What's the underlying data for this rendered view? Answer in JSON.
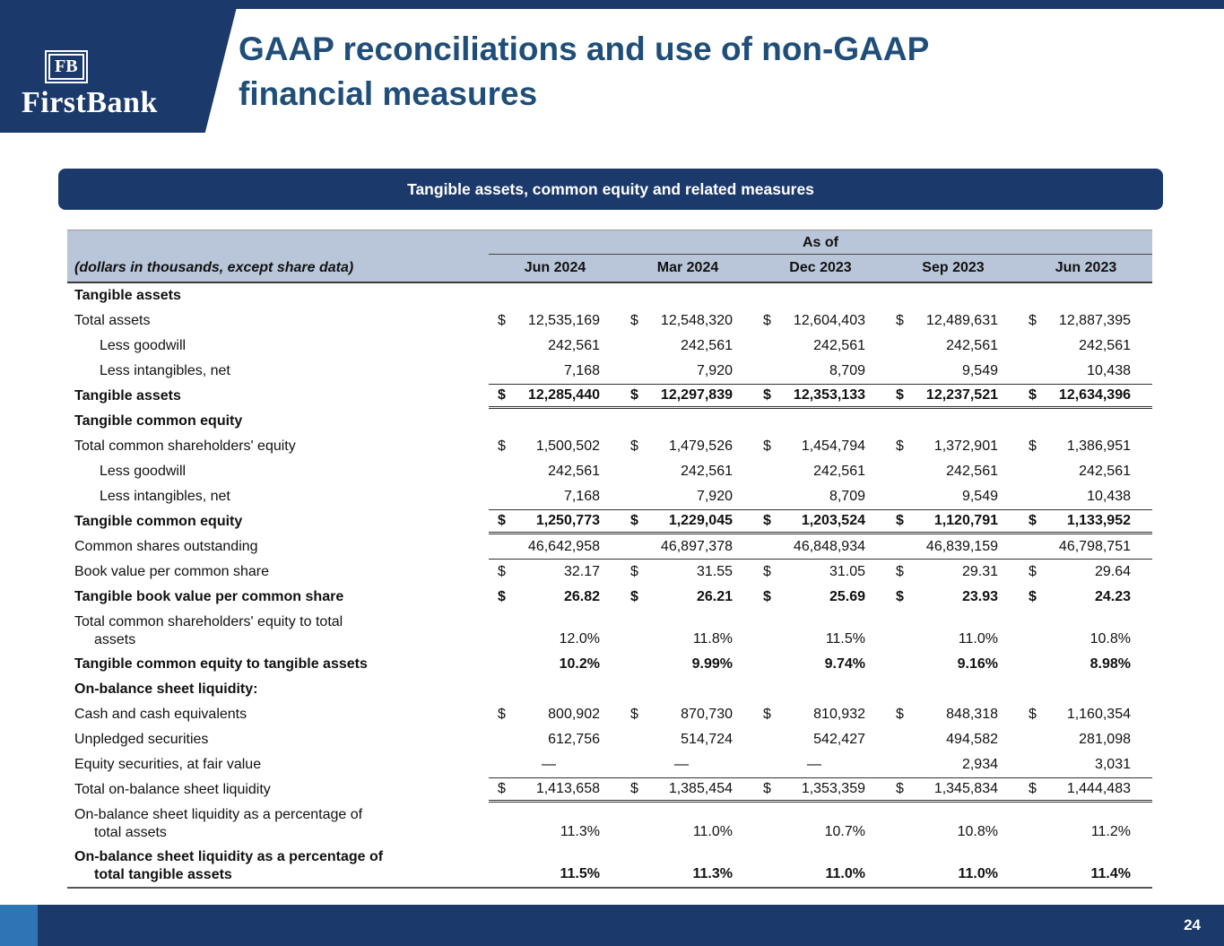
{
  "header": {
    "logo": {
      "monogram": "FB",
      "name": "FirstBank"
    },
    "title": "GAAP reconciliations and use of non-GAAP\nfinancial measures"
  },
  "banner": {
    "text": "Tangible assets, common equity and related measures"
  },
  "table": {
    "as_of_label": "As of",
    "caption": "(dollars in thousands, except share data)",
    "columns": [
      "Jun 2024",
      "Mar 2024",
      "Dec 2023",
      "Sep 2023",
      "Jun 2023"
    ],
    "rows": [
      {
        "label": "Tangible assets",
        "section": true
      },
      {
        "label": "Total assets",
        "cells": [
          "$12,535,169",
          "$12,548,320",
          "$12,604,403",
          "$12,489,631",
          "$12,887,395"
        ]
      },
      {
        "label": "Less goodwill",
        "indent": true,
        "cells": [
          "242,561",
          "242,561",
          "242,561",
          "242,561",
          "242,561"
        ]
      },
      {
        "label": "Less intangibles, net",
        "indent": true,
        "cells": [
          "7,168",
          "7,920",
          "8,709",
          "9,549",
          "10,438"
        ]
      },
      {
        "label": "Tangible assets",
        "bold": true,
        "rule_top": true,
        "rule_bottom": "double",
        "cells": [
          "$12,285,440",
          "$12,297,839",
          "$12,353,133",
          "$12,237,521",
          "$12,634,396"
        ]
      },
      {
        "label": "Tangible common equity",
        "section": true
      },
      {
        "label": "Total common shareholders' equity",
        "cells": [
          "$ 1,500,502",
          "$ 1,479,526",
          "$ 1,454,794",
          "$ 1,372,901",
          "$ 1,386,951"
        ]
      },
      {
        "label": "Less goodwill",
        "indent": true,
        "cells": [
          "242,561",
          "242,561",
          "242,561",
          "242,561",
          "242,561"
        ]
      },
      {
        "label": "Less intangibles, net",
        "indent": true,
        "cells": [
          "7,168",
          "7,920",
          "8,709",
          "9,549",
          "10,438"
        ]
      },
      {
        "label": "Tangible common equity",
        "bold": true,
        "rule_top": true,
        "rule_bottom": "double",
        "cells": [
          "$ 1,250,773",
          "$ 1,229,045",
          "$ 1,203,524",
          "$ 1,120,791",
          "$ 1,133,952"
        ]
      },
      {
        "label": "Common shares outstanding",
        "rule_bottom": "single",
        "cells": [
          "46,642,958",
          "46,897,378",
          "46,848,934",
          "46,839,159",
          "46,798,751"
        ]
      },
      {
        "label": "Book value per common share",
        "cells": [
          "$ 32.17",
          "$ 31.55",
          "$ 31.05",
          "$ 29.31",
          "$ 29.64"
        ]
      },
      {
        "label": "Tangible book value per common share",
        "bold": true,
        "cells": [
          "$ 26.82",
          "$ 26.21",
          "$ 25.69",
          "$ 23.93",
          "$ 24.23"
        ]
      },
      {
        "label": "Total common shareholders' equity to total\nassets",
        "two": true,
        "cells": [
          "12.0%",
          "11.8%",
          "11.5%",
          "11.0%",
          "10.8%"
        ]
      },
      {
        "label": "Tangible common equity to tangible assets",
        "bold": true,
        "cells": [
          "10.2%",
          "9.99%",
          "9.74%",
          "9.16%",
          "8.98%"
        ]
      },
      {
        "label": "On-balance sheet liquidity:",
        "section": true
      },
      {
        "label": "Cash and cash equivalents",
        "cells": [
          "$ 800,902",
          "$ 870,730",
          "$ 810,932",
          "$ 848,318",
          "$ 1,160,354"
        ]
      },
      {
        "label": "Unpledged securities",
        "cells": [
          "612,756",
          "514,724",
          "542,427",
          "494,582",
          "281,098"
        ]
      },
      {
        "label": "Equity securities, at fair value",
        "cells": [
          "—",
          "—",
          "—",
          "2,934",
          "3,031"
        ]
      },
      {
        "label": "Total on-balance sheet liquidity",
        "rule_top": true,
        "rule_bottom": "double",
        "cells": [
          "$ 1,413,658",
          "$ 1,385,454",
          "$ 1,353,359",
          "$ 1,345,834",
          "$ 1,444,483"
        ]
      },
      {
        "label": "On-balance sheet liquidity as a percentage of\ntotal assets",
        "two": true,
        "cells": [
          "11.3%",
          "11.0%",
          "10.7%",
          "10.8%",
          "11.2%"
        ]
      },
      {
        "label": "On-balance sheet liquidity as a percentage of\ntotal tangible assets",
        "two": true,
        "bold": true,
        "cells": [
          "11.5%",
          "11.3%",
          "11.0%",
          "11.0%",
          "11.4%"
        ]
      }
    ]
  },
  "footer": {
    "page_number": "24"
  },
  "colors": {
    "navy": "#1b3a6b",
    "title_blue": "#1f4e79",
    "table_header_bg": "#b9c6d9",
    "accent_blue": "#2e75b6",
    "page_bg": "#ffffff"
  }
}
